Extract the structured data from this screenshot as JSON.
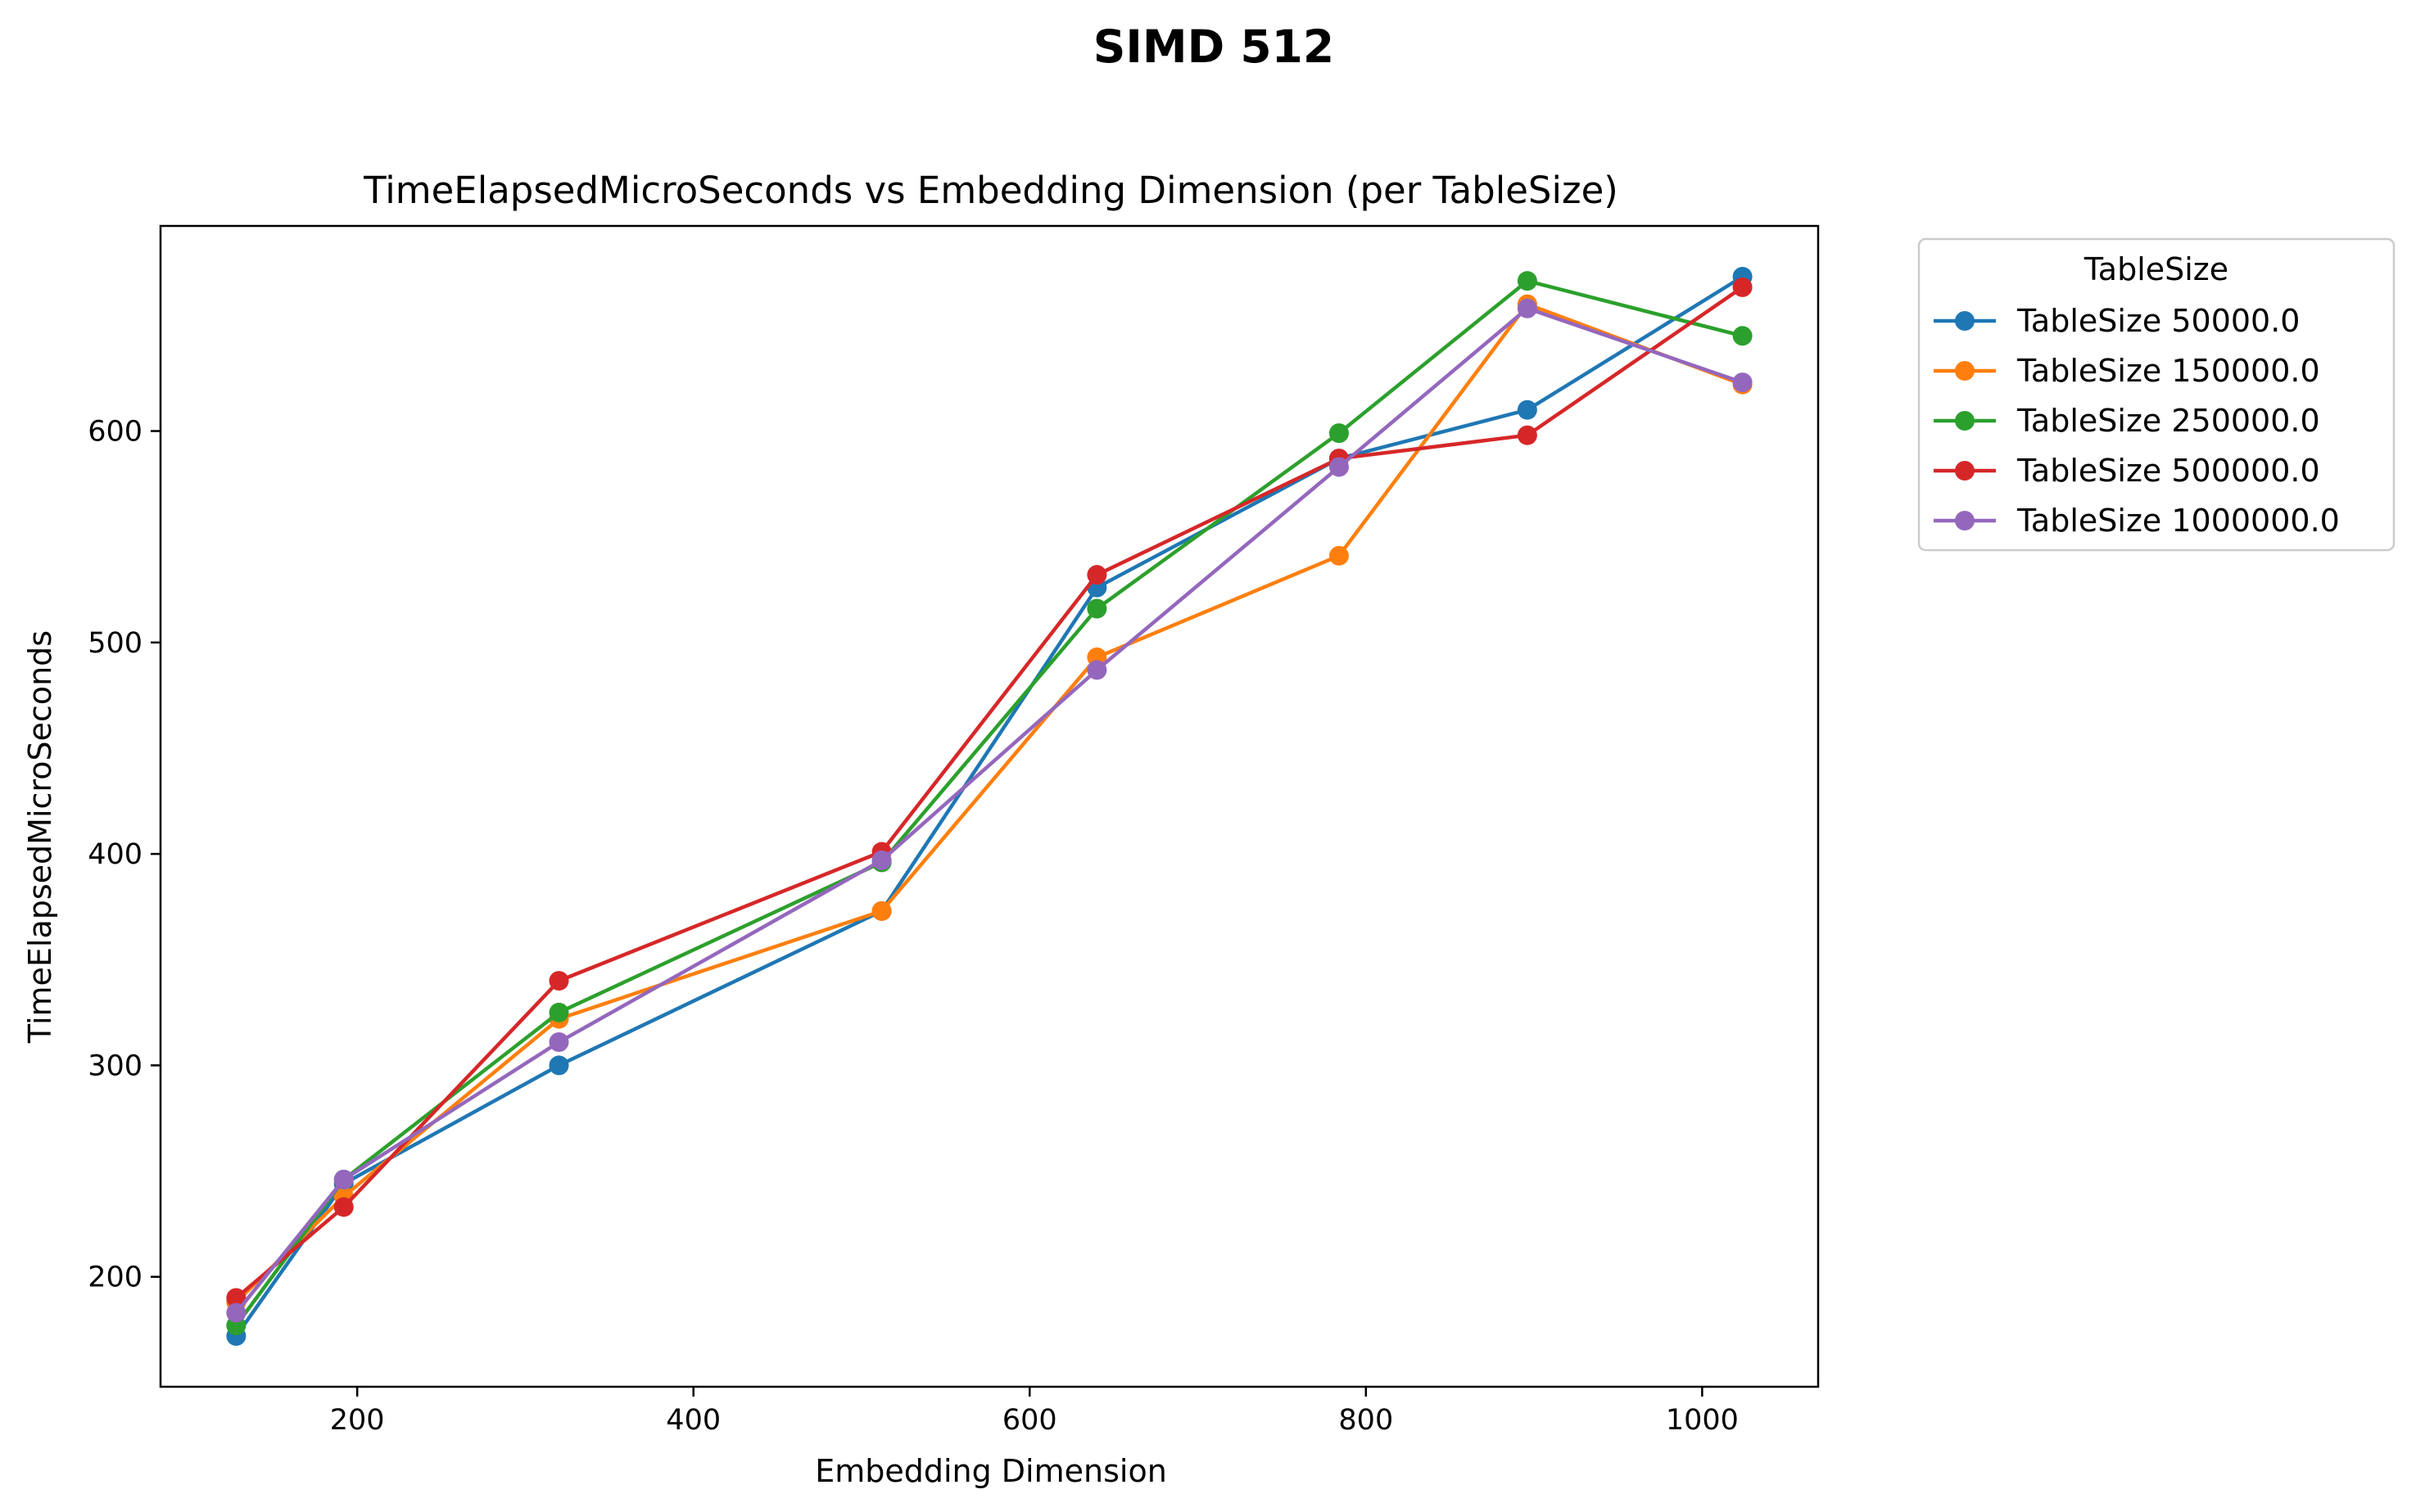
{
  "figure": {
    "suptitle": "SIMD 512"
  },
  "chart_data": {
    "type": "line",
    "title": "TimeElapsedMicroSeconds vs Embedding Dimension (per TableSize)",
    "xlabel": "Embedding Dimension",
    "ylabel": "TimeElapsedMicroSeconds",
    "x": [
      128,
      192,
      320,
      512,
      640,
      784,
      896,
      1024
    ],
    "xlim": [
      83,
      1069
    ],
    "ylim": [
      148,
      697
    ],
    "xticks": [
      200,
      400,
      600,
      800,
      1000
    ],
    "yticks": [
      200,
      300,
      400,
      500,
      600
    ],
    "grid": false,
    "legend": {
      "title": "TableSize",
      "placement": "outside-upper-right"
    },
    "series": [
      {
        "name": "TableSize 50000.0",
        "color": "#1f77b4",
        "values": [
          172,
          244,
          300,
          373,
          526,
          587,
          610,
          673
        ]
      },
      {
        "name": "TableSize 150000.0",
        "color": "#ff7f0e",
        "values": [
          188,
          238,
          322,
          373,
          493,
          541,
          660,
          622
        ]
      },
      {
        "name": "TableSize 250000.0",
        "color": "#2ca02c",
        "values": [
          177,
          246,
          325,
          396,
          516,
          599,
          671,
          645
        ]
      },
      {
        "name": "TableSize 500000.0",
        "color": "#d62728",
        "values": [
          190,
          233,
          340,
          401,
          532,
          587,
          598,
          668
        ]
      },
      {
        "name": "TableSize 1000000.0",
        "color": "#9467bd",
        "values": [
          183,
          246,
          311,
          397,
          487,
          583,
          658,
          623
        ]
      }
    ]
  }
}
